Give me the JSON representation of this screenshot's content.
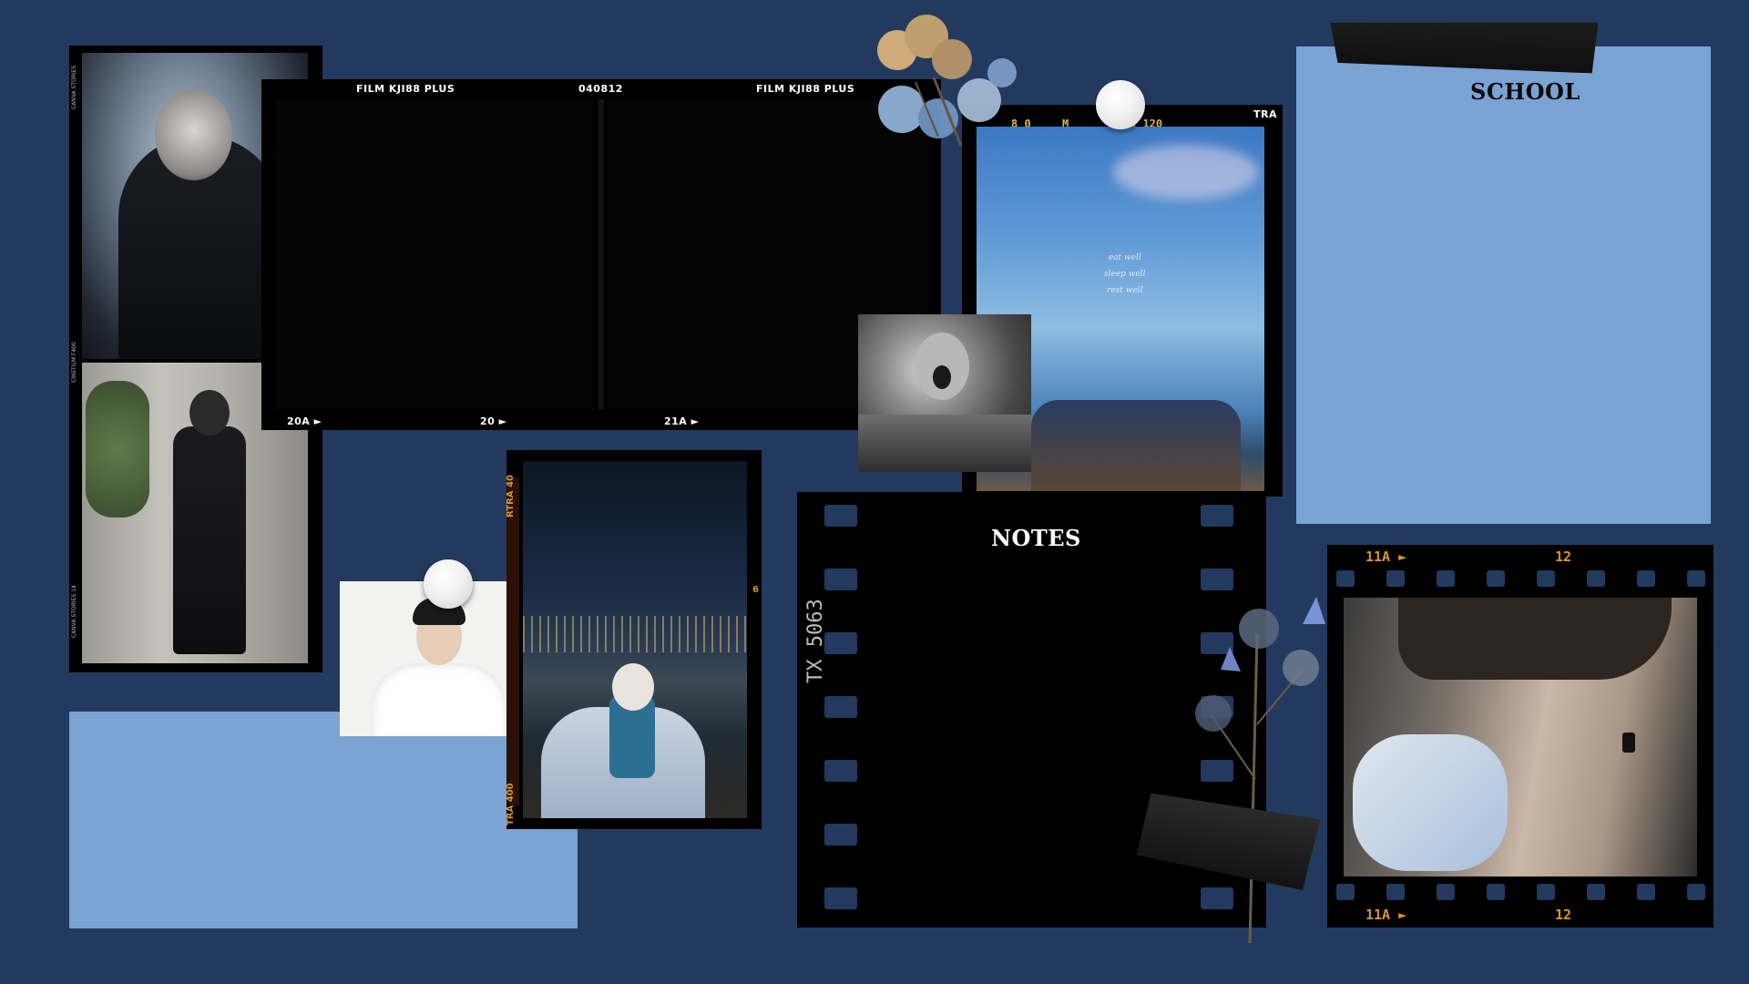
{
  "background_color": "#233a5e",
  "accent_colors": {
    "panel_blue": "#7aa3d4",
    "film_black": "#000000",
    "film_orange": "#d9962a"
  },
  "school_panel": {
    "title": "SCHOOL"
  },
  "notes_panel": {
    "title": "NOTES",
    "film_code": "TX 5063"
  },
  "contact_film": {
    "top_labels": [
      "FILM KJI88 PLUS",
      "040812",
      "FILM KJI88 PLUS"
    ],
    "bottom_labels": [
      "20A",
      "20",
      "21A"
    ]
  },
  "left_strip": {
    "side_texts": [
      "CANVA STORIES",
      "CINEFILM F400",
      "CANVA STORIES 14"
    ]
  },
  "night_photo": {
    "side_text_top": "RTRA 40",
    "side_text_bottom": "TRA 400",
    "side_number": "6"
  },
  "sky_photo": {
    "header_labels": [
      "8 0",
      "M",
      "8 120",
      "TRA"
    ],
    "caption_lines": [
      "eat well",
      "sleep well",
      "rest well"
    ]
  },
  "portrait_film": {
    "top_labels": [
      "11A",
      "12"
    ],
    "bottom_labels": [
      "11A",
      "12"
    ]
  },
  "icons": [
    "pushpin-icon",
    "dried-flower-icon",
    "tape-icon",
    "thistle-flower-icon"
  ]
}
